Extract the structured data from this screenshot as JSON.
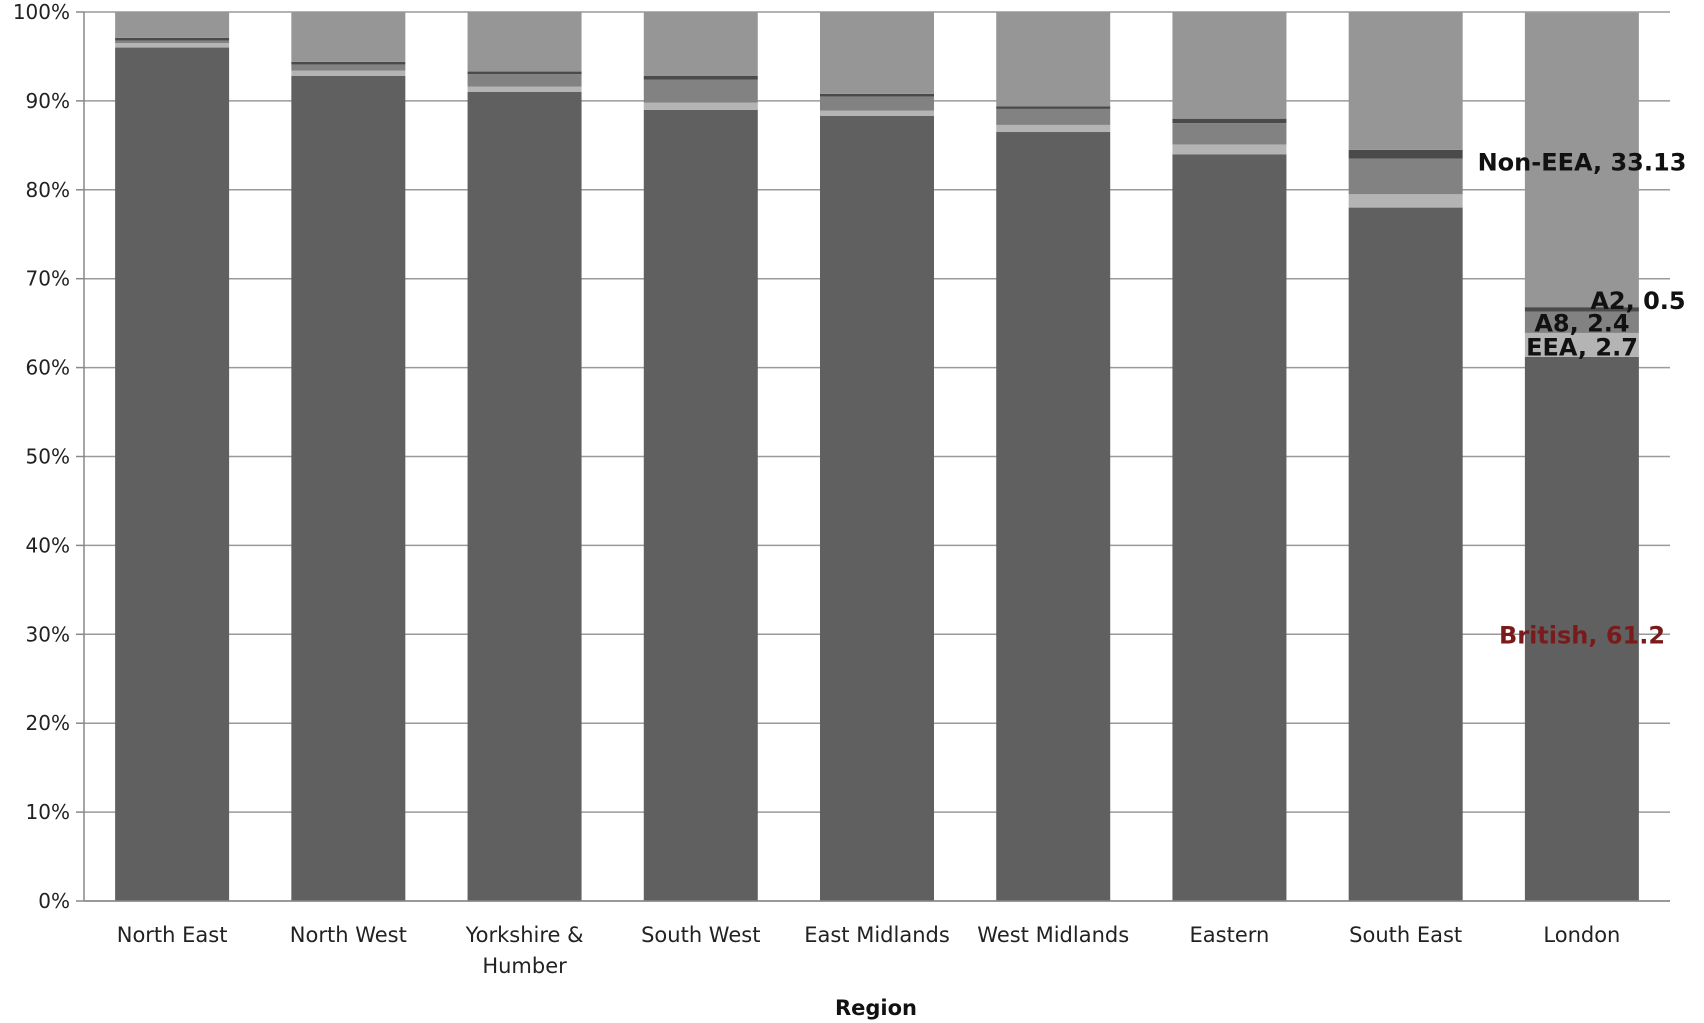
{
  "chart_data": {
    "type": "bar",
    "stacked": true,
    "percent": true,
    "title": "",
    "xlabel": "Region",
    "ylabel": "",
    "ylim": [
      0,
      100
    ],
    "yticks": [
      "0%",
      "10%",
      "20%",
      "30%",
      "40%",
      "50%",
      "60%",
      "70%",
      "80%",
      "90%",
      "100%"
    ],
    "grid": true,
    "legend": "none",
    "categories": [
      [
        "North East"
      ],
      [
        "North West"
      ],
      [
        "Yorkshire &",
        "Humber"
      ],
      [
        "South West"
      ],
      [
        "East Midlands"
      ],
      [
        "West Midlands"
      ],
      [
        "Eastern"
      ],
      [
        "South East"
      ],
      [
        "London"
      ]
    ],
    "series": [
      {
        "key": "british",
        "color": "#606060",
        "values": [
          96.0,
          92.8,
          91.0,
          89.0,
          88.3,
          86.5,
          84.0,
          78.0,
          61.2
        ]
      },
      {
        "key": "eea",
        "color": "#b4b4b4",
        "values": [
          0.5,
          0.6,
          0.6,
          0.8,
          0.6,
          0.8,
          1.1,
          1.5,
          2.7
        ]
      },
      {
        "key": "a8",
        "color": "#828282",
        "values": [
          0.3,
          0.7,
          1.4,
          2.6,
          1.6,
          1.8,
          2.4,
          4.0,
          2.4
        ]
      },
      {
        "key": "a2",
        "color": "#4a4a4a",
        "values": [
          0.3,
          0.3,
          0.3,
          0.4,
          0.3,
          0.3,
          0.5,
          1.0,
          0.5
        ]
      },
      {
        "key": "non_eea",
        "color": "#969696",
        "values": [
          2.9,
          5.6,
          6.7,
          7.2,
          9.2,
          10.6,
          12.0,
          15.5,
          33.13
        ]
      }
    ],
    "annotations": [
      {
        "text": "Non-EEA, 33.13",
        "category_index": 8,
        "y": 83.2,
        "color": "#111111"
      },
      {
        "text": "A2, 0.5",
        "category_index": 8,
        "y": 67.6,
        "color": "#111111"
      },
      {
        "text": "A8, 2.4",
        "category_index": 8,
        "y": 65.1,
        "color": "#111111"
      },
      {
        "text": "EEA, 2.7",
        "category_index": 8,
        "y": 62.4,
        "color": "#111111"
      },
      {
        "text": "British, 61.2",
        "category_index": 8,
        "y": 30.0,
        "color": "#7a1a1a"
      }
    ]
  }
}
